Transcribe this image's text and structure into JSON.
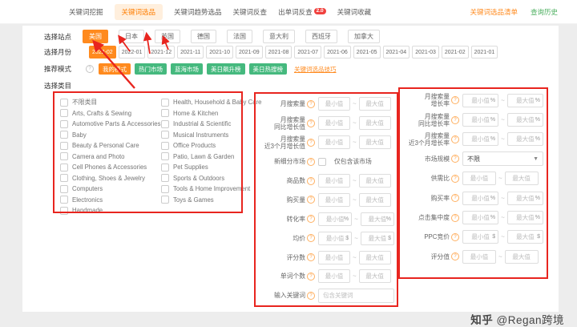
{
  "colors": {
    "accent_orange": "#ff8a1e",
    "accent_green": "#45b97e",
    "annotation_red": "#e8251f",
    "badge_red": "#f0413e",
    "link_green": "#4caf5f"
  },
  "nav": {
    "tabs": [
      {
        "label": "关键词挖掘",
        "active": false
      },
      {
        "label": "关键词选品",
        "active": true
      },
      {
        "label": "关键词趋势选品",
        "active": false
      },
      {
        "label": "关键词反查",
        "active": false
      },
      {
        "label": "出单词反查",
        "active": false,
        "badge": "2.0"
      },
      {
        "label": "关键词收藏",
        "active": false
      }
    ],
    "links": [
      {
        "label": "关键词选品清单",
        "color": "#ff8a1e"
      },
      {
        "label": "查询历史",
        "color": "#4caf5f"
      }
    ]
  },
  "site_row": {
    "label": "选择站点",
    "selected": "美国",
    "options": [
      "美国",
      "日本",
      "英国",
      "德国",
      "法国",
      "意大利",
      "西班牙",
      "加拿大"
    ]
  },
  "month_row": {
    "label": "选择月份",
    "selected": "2022-02",
    "options": [
      "2022-02",
      "2022-01",
      "2021-12",
      "2021-11",
      "2021-10",
      "2021-09",
      "2021-08",
      "2021-07",
      "2021-06",
      "2021-05",
      "2021-04",
      "2021-03",
      "2021-02",
      "2021-01"
    ]
  },
  "mode_row": {
    "label": "推荐模式",
    "selected": "我的模式",
    "options": [
      "我的模式",
      "热门市场",
      "蓝海市场",
      "美日飙升榜",
      "美日热搜榜"
    ],
    "link": "关键词选品技巧"
  },
  "category": {
    "label": "选择类目",
    "columns": [
      [
        "不限类目",
        "Arts, Crafts & Sewing",
        "Automotive Parts & Accessories",
        "Baby",
        "Beauty & Personal Care",
        "Camera and Photo",
        "Cell Phones & Accessories",
        "Clothing, Shoes & Jewelry",
        "Computers",
        "Electronics",
        "Handmade"
      ],
      [
        "Health, Household & Baby Care",
        "Home & Kitchen",
        "Industrial & Scientific",
        "Musical Instruments",
        "Office Products",
        "Patio, Lawn & Garden",
        "Pet Supplies",
        "Sports & Outdoors",
        "Tools & Home Improvement",
        "Toys & Games"
      ]
    ]
  },
  "range_placeholders": {
    "min": "最小值",
    "max": "最大值",
    "tilde": "~"
  },
  "mid_rows": [
    {
      "label": "月搜索量",
      "type": "range"
    },
    {
      "label": "月搜索量\n同比增长值",
      "type": "range"
    },
    {
      "label": "月搜索量\n近3个月增长值",
      "type": "range"
    },
    {
      "label": "新细分市场",
      "type": "checkbox",
      "option": "仅包含该市场",
      "checked": false
    },
    {
      "label": "商品数",
      "type": "range"
    },
    {
      "label": "购买量",
      "type": "range"
    },
    {
      "label": "转化率",
      "type": "range",
      "unit": "%"
    },
    {
      "label": "均价",
      "type": "range",
      "unit": "$"
    },
    {
      "label": "评分数",
      "type": "range"
    },
    {
      "label": "单词个数",
      "type": "range"
    },
    {
      "label": "输入关键词",
      "type": "text",
      "placeholder": "包含关键词"
    }
  ],
  "right_rows": [
    {
      "label": "月搜索量\n增长率",
      "type": "range",
      "unit": "%"
    },
    {
      "label": "月搜索量\n同比增长率",
      "type": "range",
      "unit": "%"
    },
    {
      "label": "月搜索量\n近3个月增长率",
      "type": "range",
      "unit": "%"
    },
    {
      "label": "市场规模",
      "type": "select",
      "value": "不限"
    },
    {
      "label": "供需比",
      "type": "range"
    },
    {
      "label": "购买率",
      "type": "range",
      "unit": "%"
    },
    {
      "label": "点击集中度",
      "type": "range",
      "unit": "%"
    },
    {
      "label": "PPC竞价",
      "type": "range",
      "unit": "$"
    },
    {
      "label": "评分值",
      "type": "range"
    }
  ],
  "watermark": {
    "brand": "知乎",
    "handle": "@Regan跨境"
  }
}
